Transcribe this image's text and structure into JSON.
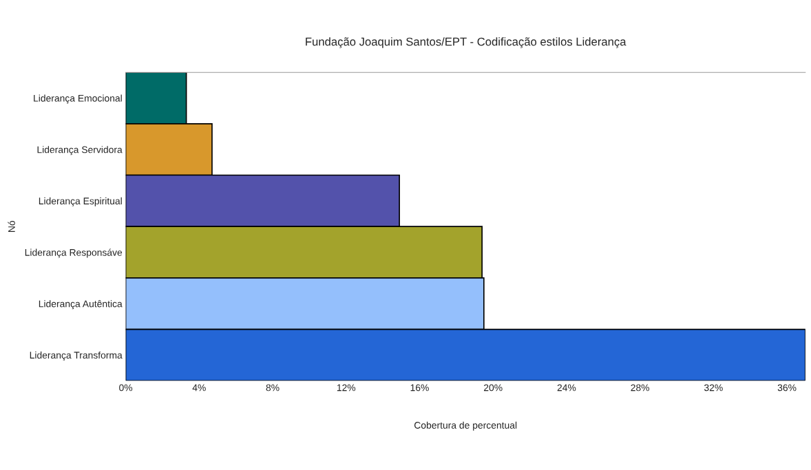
{
  "chart_data": {
    "type": "bar",
    "orientation": "horizontal",
    "title": "Fundação Joaquim Santos/EPT - Codificação estilos Liderança",
    "xlabel": "Cobertura de percentual",
    "ylabel": "Nó",
    "categories": [
      "Liderança Emocional",
      "Liderança Servidora",
      "Liderança Espiritual",
      "Liderança Responsáve",
      "Liderança Autêntica",
      "Liderança Transforma"
    ],
    "values": [
      3.3,
      4.7,
      14.9,
      19.4,
      19.5,
      37
    ],
    "colors": [
      "#006b67",
      "#d8982c",
      "#5352ab",
      "#a3a32c",
      "#94bffc",
      "#2466d6"
    ],
    "xlim": [
      0,
      37
    ],
    "xticks": [
      {
        "value": 0,
        "label": "0%"
      },
      {
        "value": 4,
        "label": "4%"
      },
      {
        "value": 8,
        "label": "8%"
      },
      {
        "value": 12,
        "label": "12%"
      },
      {
        "value": 16,
        "label": "16%"
      },
      {
        "value": 20,
        "label": "20%"
      },
      {
        "value": 24,
        "label": "24%"
      },
      {
        "value": 28,
        "label": "28%"
      },
      {
        "value": 32,
        "label": "32%"
      },
      {
        "value": 36,
        "label": "36%"
      }
    ],
    "grid": false,
    "legend": false
  }
}
